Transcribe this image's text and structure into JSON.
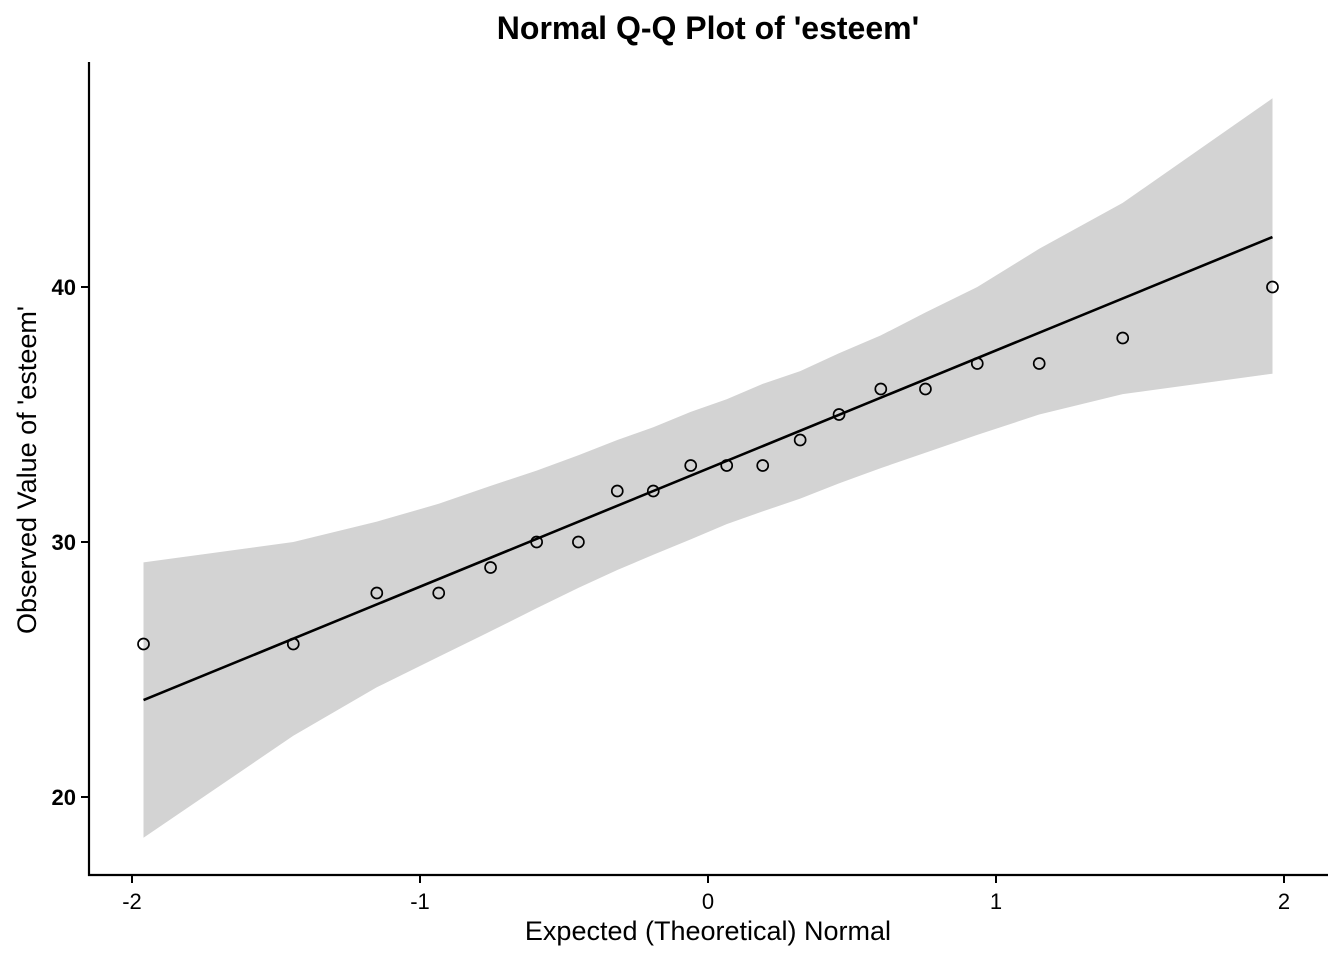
{
  "chart_data": {
    "type": "scatter",
    "title": "Normal Q-Q Plot of 'esteem'",
    "xlabel": "Expected (Theoretical) Normal",
    "ylabel": "Observed Value of 'esteem'",
    "xlim": [
      -2.15,
      2.15
    ],
    "ylim": [
      17,
      49
    ],
    "x_ticks": [
      -2,
      -1,
      0,
      1,
      2
    ],
    "x_tick_labels": [
      "-2",
      "-1",
      "0",
      "1",
      "2"
    ],
    "y_ticks": [
      20,
      30,
      40
    ],
    "y_tick_labels": [
      "20",
      "30",
      "40"
    ],
    "grid": false,
    "points": {
      "x": [
        -1.96,
        -1.44,
        -1.15,
        -0.935,
        -0.755,
        -0.595,
        -0.45,
        -0.315,
        -0.19,
        -0.06,
        0.065,
        0.19,
        0.32,
        0.455,
        0.6,
        0.755,
        0.935,
        1.15,
        1.44,
        1.96
      ],
      "y": [
        26,
        26,
        28,
        28,
        29,
        30,
        30,
        32,
        32,
        33,
        33,
        33,
        34,
        35,
        36,
        36,
        37,
        37,
        38,
        40
      ]
    },
    "reference_line": {
      "x": [
        -1.96,
        1.96
      ],
      "y": [
        23.8,
        41.96
      ]
    },
    "confidence_band": {
      "x": [
        -1.96,
        -1.44,
        -1.15,
        -0.935,
        -0.755,
        -0.595,
        -0.45,
        -0.315,
        -0.19,
        -0.06,
        0.065,
        0.19,
        0.32,
        0.455,
        0.6,
        0.755,
        0.935,
        1.15,
        1.44,
        1.96
      ],
      "upper": [
        29.2,
        30.0,
        30.8,
        31.5,
        32.2,
        32.8,
        33.4,
        34.0,
        34.5,
        35.1,
        35.6,
        36.2,
        36.7,
        37.4,
        38.1,
        39.0,
        40.0,
        41.5,
        43.3,
        47.4
      ],
      "lower": [
        18.4,
        22.4,
        24.3,
        25.5,
        26.5,
        27.4,
        28.2,
        28.9,
        29.5,
        30.1,
        30.7,
        31.2,
        31.7,
        32.3,
        32.9,
        33.5,
        34.2,
        35.0,
        35.8,
        36.6
      ]
    },
    "colors": {
      "band": "#d3d3d3",
      "line": "#000000",
      "point_stroke": "#000000",
      "point_fill": "none"
    }
  }
}
